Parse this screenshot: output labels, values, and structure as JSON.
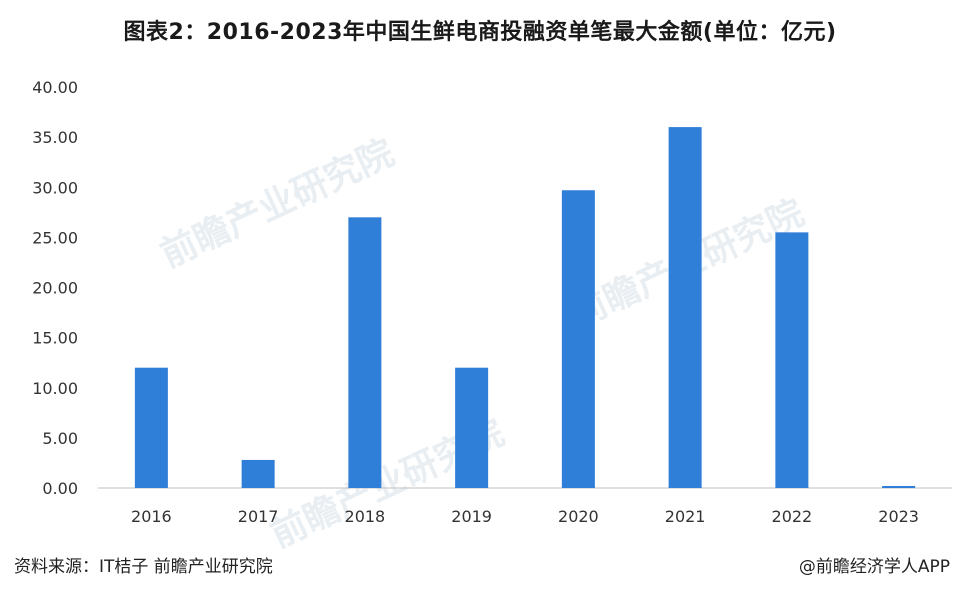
{
  "title": "图表2：2016-2023年中国生鲜电商投融资单笔最大金额(单位：亿元)",
  "watermark": "前瞻产业研究院",
  "footer": {
    "source": "资料来源：IT桔子 前瞻产业研究院",
    "brand": "@前瞻经济学人APP"
  },
  "colors": {
    "bar": "#2f7ed8",
    "axis": "#bfbfbf",
    "text": "#333333"
  },
  "chart_data": {
    "type": "bar",
    "categories": [
      "2016",
      "2017",
      "2018",
      "2019",
      "2020",
      "2021",
      "2022",
      "2023"
    ],
    "values": [
      12.0,
      2.8,
      27.0,
      12.0,
      29.7,
      36.0,
      25.5,
      0.2
    ],
    "yticks": [
      "0.00",
      "5.00",
      "10.00",
      "15.00",
      "20.00",
      "25.00",
      "30.00",
      "35.00",
      "40.00"
    ],
    "ylim": [
      0,
      40
    ],
    "grid": false,
    "legend": "none"
  }
}
